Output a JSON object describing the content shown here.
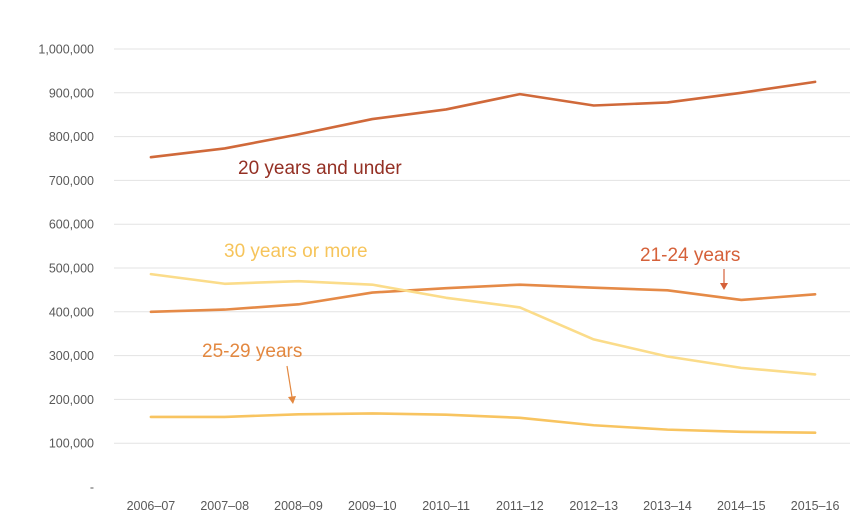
{
  "chart_data": {
    "type": "line",
    "title": "",
    "xlabel": "",
    "ylabel": "",
    "categories": [
      "2006–07",
      "2007–08",
      "2008–09",
      "2009–10",
      "2010–11",
      "2011–12",
      "2012–13",
      "2013–14",
      "2014–15",
      "2015–16"
    ],
    "ylim": [
      0,
      1000000
    ],
    "yticks": [
      {
        "value": 0,
        "label": "-"
      },
      {
        "value": 100000,
        "label": "100,000"
      },
      {
        "value": 200000,
        "label": "200,000"
      },
      {
        "value": 300000,
        "label": "300,000"
      },
      {
        "value": 400000,
        "label": "400,000"
      },
      {
        "value": 500000,
        "label": "500,000"
      },
      {
        "value": 600000,
        "label": "600,000"
      },
      {
        "value": 700000,
        "label": "700,000"
      },
      {
        "value": 800000,
        "label": "800,000"
      },
      {
        "value": 900000,
        "label": "900,000"
      },
      {
        "value": 1000000,
        "label": "1,000,000"
      }
    ],
    "grid": true,
    "legend": "none",
    "series": [
      {
        "name": "20 years and under",
        "color": "#d0693a",
        "label_color": "#943024",
        "values": [
          753000,
          773000,
          805000,
          840000,
          862000,
          897000,
          871000,
          878000,
          900000,
          925000
        ]
      },
      {
        "name": "21-24 years",
        "color": "#e58a47",
        "label_color": "#d5613a",
        "values": [
          400000,
          405000,
          417000,
          444000,
          454000,
          462000,
          455000,
          449000,
          427000,
          440000
        ]
      },
      {
        "name": "30 years or more",
        "color": "#fbdc8a",
        "label_color": "#f6c45b",
        "values": [
          486000,
          464000,
          470000,
          462000,
          432000,
          410000,
          337000,
          298000,
          272000,
          257000
        ]
      },
      {
        "name": "25-29 years",
        "color": "#f8c460",
        "label_color": "#e38840",
        "values": [
          160000,
          160000,
          166000,
          168000,
          165000,
          158000,
          141000,
          131000,
          126000,
          124000
        ]
      }
    ]
  }
}
